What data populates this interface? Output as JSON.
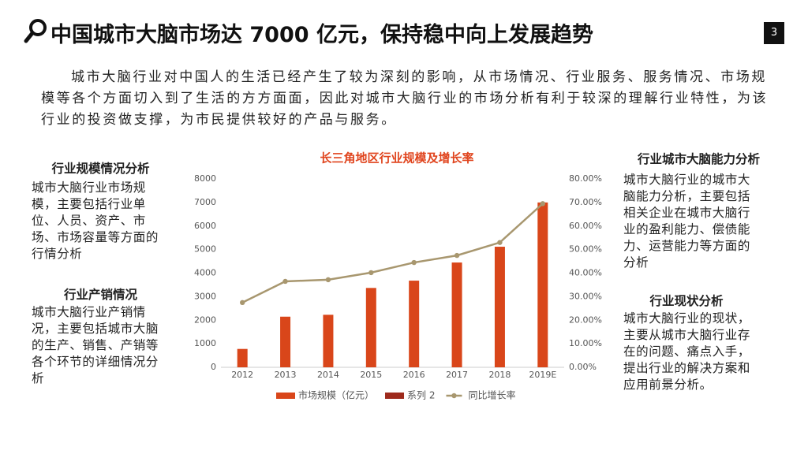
{
  "header": {
    "title": "中国城市大脑市场达 7000 亿元，保持稳中向上发展趋势",
    "page_number": "3"
  },
  "intro": "城市大脑行业对中国人的生活已经产生了较为深刻的影响，从市场情况、行业服务、服务情况、市场规模等各个方面切入到了生活的方方面面，因此对城市大脑行业的市场分析有利于较深的理解行业特性，为该行业的投资做支撑，为市民提供较好的产品与服务。",
  "left": [
    {
      "heading": "行业规模情况分析",
      "body": "城市大脑行业市场规模，主要包括行业单位、人员、资产、市场、市场容量等方面的行情分析"
    },
    {
      "heading": "行业产销情况",
      "body": "城市大脑行业产销情况，主要包括城市大脑的生产、销售、产销等各个环节的详细情况分析"
    }
  ],
  "right": [
    {
      "heading": "行业城市大脑能力分析",
      "body": "城市大脑行业的城市大脑能力分析，主要包括相关企业在城市大脑行业的盈利能力、偿债能力、运营能力等方面的分析"
    },
    {
      "heading": "行业现状分析",
      "body": "城市大脑行业的现状，主要从城市大脑行业存在的问题、痛点入手，提出行业的解决方案和应用前景分析。"
    }
  ],
  "chart_data": {
    "type": "bar_line",
    "title": "长三角地区行业规模及增长率",
    "categories": [
      "2012",
      "2013",
      "2014",
      "2015",
      "2016",
      "2017",
      "2018",
      "2019E"
    ],
    "series": [
      {
        "name": "市场规模（亿元）",
        "color": "#d9461a",
        "type": "bar",
        "values": [
          780,
          2150,
          2230,
          3370,
          3680,
          4450,
          5120,
          7000
        ]
      },
      {
        "name": "系列 2",
        "color": "#9e2a1c",
        "type": "bar",
        "values": [
          null,
          null,
          null,
          null,
          null,
          null,
          null,
          null
        ]
      },
      {
        "name": "同比增长率",
        "color": "#a8976f",
        "type": "line",
        "axis": "y2",
        "values": [
          27.5,
          36.5,
          37.2,
          40.2,
          44.5,
          47.5,
          53,
          69.5
        ]
      }
    ],
    "ylim": [
      0,
      8000
    ],
    "yticks": [
      0,
      1000,
      2000,
      3000,
      4000,
      5000,
      6000,
      7000,
      8000
    ],
    "y2lim": [
      0,
      80
    ],
    "y2ticks": [
      {
        "value": 0,
        "label": "0.00%"
      },
      {
        "value": 10,
        "label": "10.00%"
      },
      {
        "value": 20,
        "label": "20.00%"
      },
      {
        "value": 30,
        "label": "30.00%"
      },
      {
        "value": 40,
        "label": "40.00%"
      },
      {
        "value": 50,
        "label": "50.00%"
      },
      {
        "value": 60,
        "label": "60.00%"
      },
      {
        "value": 70,
        "label": "70.00%"
      },
      {
        "value": 80,
        "label": "80.00%"
      }
    ],
    "legend": "bottom"
  }
}
